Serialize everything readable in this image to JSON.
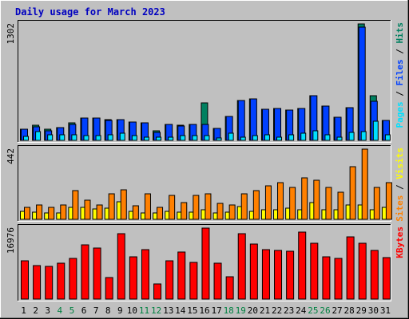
{
  "chart_data": {
    "type": "bar",
    "title": "Daily usage for March 2023",
    "categories": [
      "1",
      "2",
      "3",
      "4",
      "5",
      "6",
      "7",
      "8",
      "9",
      "10",
      "11",
      "12",
      "13",
      "14",
      "15",
      "16",
      "17",
      "18",
      "19",
      "20",
      "21",
      "22",
      "23",
      "24",
      "25",
      "26",
      "27",
      "28",
      "29",
      "30",
      "31"
    ],
    "weekend_days": [
      "4",
      "5",
      "11",
      "12",
      "18",
      "19",
      "25",
      "26"
    ],
    "weekend_color": "#008040",
    "colors": {
      "hits": "#008060",
      "files": "#0040ff",
      "pages": "#00e0ff",
      "visits": "#ffff00",
      "sites": "#ff8000",
      "kbytes": "#ff0000",
      "title": "#0000c0",
      "background": "#c0c0c0"
    },
    "panels": [
      {
        "id": "hits_files_pages",
        "max_label": "1302",
        "ylim": [
          0,
          1302
        ],
        "legend": [
          {
            "text": "Pages",
            "color": "#00e0ff"
          },
          {
            "text": " / ",
            "color": "#000000"
          },
          {
            "text": "Files",
            "color": "#0040ff"
          },
          {
            "text": " / ",
            "color": "#000000"
          },
          {
            "text": "Hits",
            "color": "#008060"
          }
        ],
        "series": [
          {
            "name": "Hits",
            "color": "#008060",
            "values": [
              125,
              172,
              122,
              146,
              200,
              249,
              249,
              232,
              233,
              202,
              198,
              107,
              175,
              173,
              175,
              418,
              138,
              271,
              442,
              461,
              347,
              360,
              342,
              360,
              500,
              382,
              260,
              362,
              1302,
              500,
              222
            ]
          },
          {
            "name": "Files",
            "color": "#0040ff",
            "values": [
              125,
              154,
              110,
              140,
              180,
              249,
              249,
              225,
              233,
              202,
              198,
              92,
              175,
              158,
              175,
              180,
              130,
              271,
              442,
              461,
              347,
              360,
              342,
              360,
              500,
              382,
              260,
              362,
              1265,
              440,
              222
            ]
          },
          {
            "name": "Pages",
            "color": "#00e0ff",
            "values": [
              45,
              100,
              60,
              60,
              60,
              50,
              50,
              60,
              80,
              50,
              40,
              40,
              40,
              50,
              50,
              50,
              30,
              80,
              40,
              50,
              60,
              40,
              60,
              80,
              110,
              60,
              40,
              85,
              100,
              210,
              60
            ]
          }
        ]
      },
      {
        "id": "visits_sites",
        "max_label": "442",
        "ylim": [
          0,
          442
        ],
        "legend": [
          {
            "text": "Sites",
            "color": "#ff8000"
          },
          {
            "text": " / ",
            "color": "#000000"
          },
          {
            "text": "Visits",
            "color": "#ffff00"
          }
        ],
        "series": [
          {
            "name": "Sites",
            "color": "#ff8000",
            "values": [
              75,
              88,
              75,
              88,
              180,
              120,
              90,
              160,
              185,
              85,
              160,
              75,
              150,
              105,
              150,
              160,
              100,
              88,
              160,
              180,
              210,
              230,
              200,
              260,
              245,
              200,
              170,
              330,
              442,
              200,
              230
            ]
          },
          {
            "name": "Visits",
            "color": "#ffff00",
            "values": [
              50,
              45,
              40,
              40,
              75,
              75,
              65,
              70,
              110,
              50,
              40,
              40,
              50,
              45,
              45,
              60,
              40,
              45,
              80,
              50,
              60,
              60,
              70,
              60,
              105,
              60,
              60,
              90,
              90,
              60,
              75
            ]
          }
        ]
      },
      {
        "id": "kbytes",
        "max_label": "16976",
        "ylim": [
          0,
          16976
        ],
        "legend": [
          {
            "text": "KBytes",
            "color": "#ff0000"
          }
        ],
        "series": [
          {
            "name": "KBytes",
            "color": "#ff0000",
            "values": [
              9200,
              8100,
              7800,
              8500,
              9800,
              12900,
              12200,
              5100,
              15700,
              10200,
              11800,
              3600,
              9200,
              11200,
              8800,
              16976,
              8600,
              5400,
              15600,
              13200,
              11800,
              11600,
              11500,
              16100,
              13300,
              10100,
              9800,
              14800,
              13400,
              11600,
              10000
            ]
          }
        ]
      }
    ]
  }
}
